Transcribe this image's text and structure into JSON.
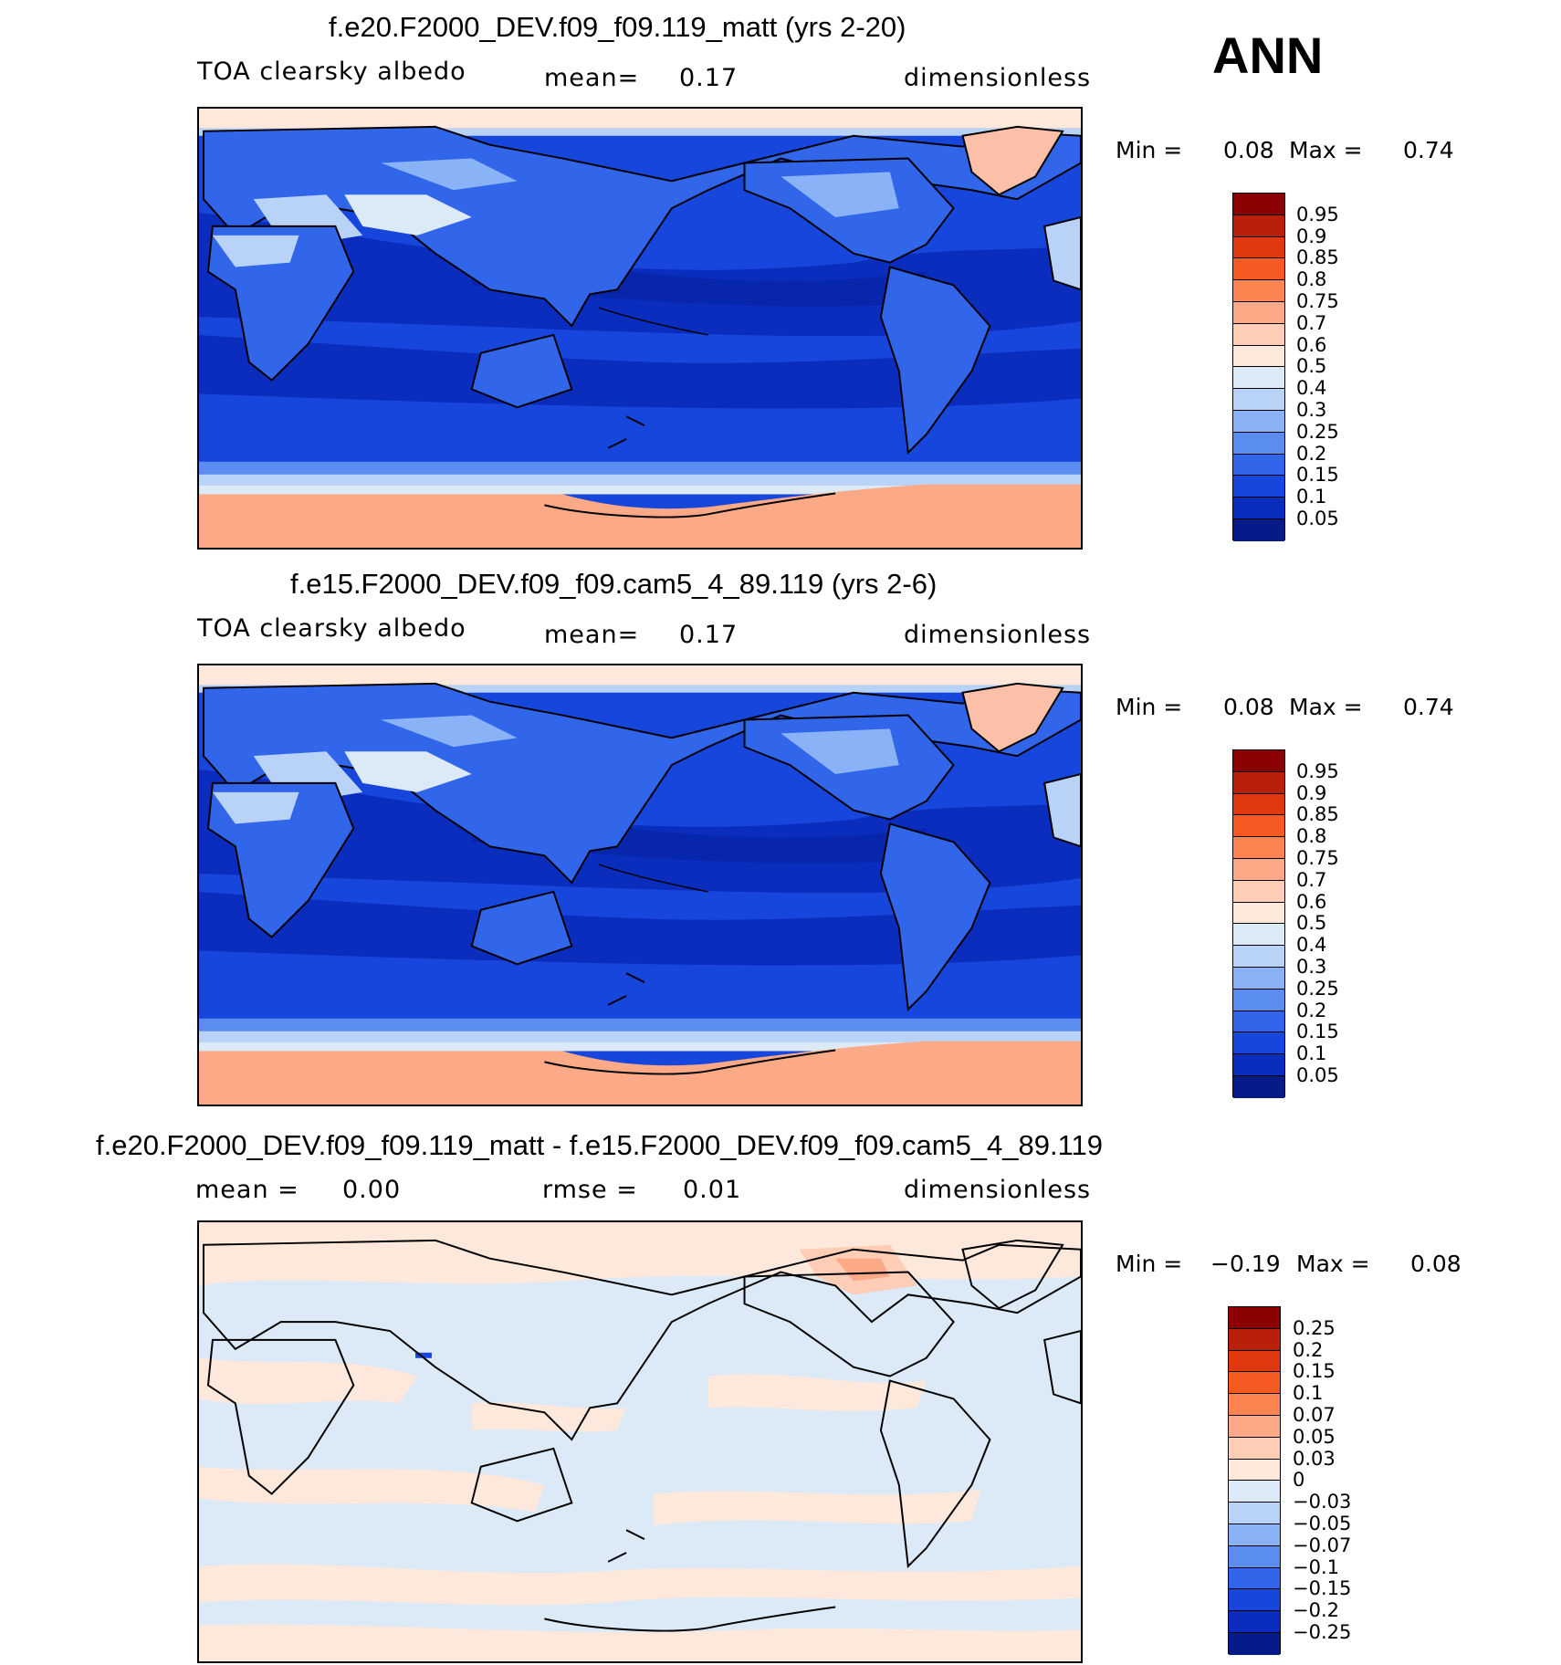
{
  "season": "ANN",
  "panels": [
    {
      "title": "f.e20.F2000_DEV.f09_f09.119_matt (yrs 2-20)",
      "variable": "TOA clearsky albedo",
      "stat1_label": "mean=",
      "stat1_value": "0.17",
      "units": "dimensionless",
      "min_label": "Min =",
      "min_value": "0.08",
      "max_label": "Max =",
      "max_value": "0.74"
    },
    {
      "title": "f.e15.F2000_DEV.f09_f09.cam5_4_89.119 (yrs 2-6)",
      "variable": "TOA clearsky albedo",
      "stat1_label": "mean=",
      "stat1_value": "0.17",
      "units": "dimensionless",
      "min_label": "Min =",
      "min_value": "0.08",
      "max_label": "Max =",
      "max_value": "0.74"
    },
    {
      "title": "f.e20.F2000_DEV.f09_f09.119_matt - f.e15.F2000_DEV.f09_f09.cam5_4_89.119",
      "stat1_label": "mean =",
      "stat1_value": "0.00",
      "stat2_label": "rmse =",
      "stat2_value": "0.01",
      "units": "dimensionless",
      "min_label": "Min =",
      "min_value": "−0.19",
      "max_label": "Max =",
      "max_value": "0.08"
    }
  ],
  "colorbars": {
    "albedo": {
      "labels": [
        "0.95",
        "0.9",
        "0.85",
        "0.8",
        "0.75",
        "0.7",
        "0.6",
        "0.5",
        "0.4",
        "0.3",
        "0.25",
        "0.2",
        "0.15",
        "0.1",
        "0.05"
      ],
      "colors": [
        "#8b0000",
        "#b8200a",
        "#e0380f",
        "#f55a22",
        "#fb8451",
        "#fca987",
        "#fdcdb6",
        "#fee8dc",
        "#dce9f7",
        "#b8d3f7",
        "#8ab2f6",
        "#5b8cf0",
        "#3266ea",
        "#1746dd",
        "#0a2dbe",
        "#061a8a"
      ]
    },
    "diff": {
      "labels": [
        "0.25",
        "0.2",
        "0.15",
        "0.1",
        "0.07",
        "0.05",
        "0.03",
        "0",
        "−0.03",
        "−0.05",
        "−0.07",
        "−0.1",
        "−0.15",
        "−0.2",
        "−0.25"
      ],
      "colors": [
        "#8b0000",
        "#b8200a",
        "#e0380f",
        "#f55a22",
        "#fb8451",
        "#fca987",
        "#fdcdb6",
        "#fee8dc",
        "#dce9f7",
        "#b8d3f7",
        "#8ab2f6",
        "#5b8cf0",
        "#3266ea",
        "#1746dd",
        "#0a2dbe",
        "#061a8a"
      ]
    }
  }
}
